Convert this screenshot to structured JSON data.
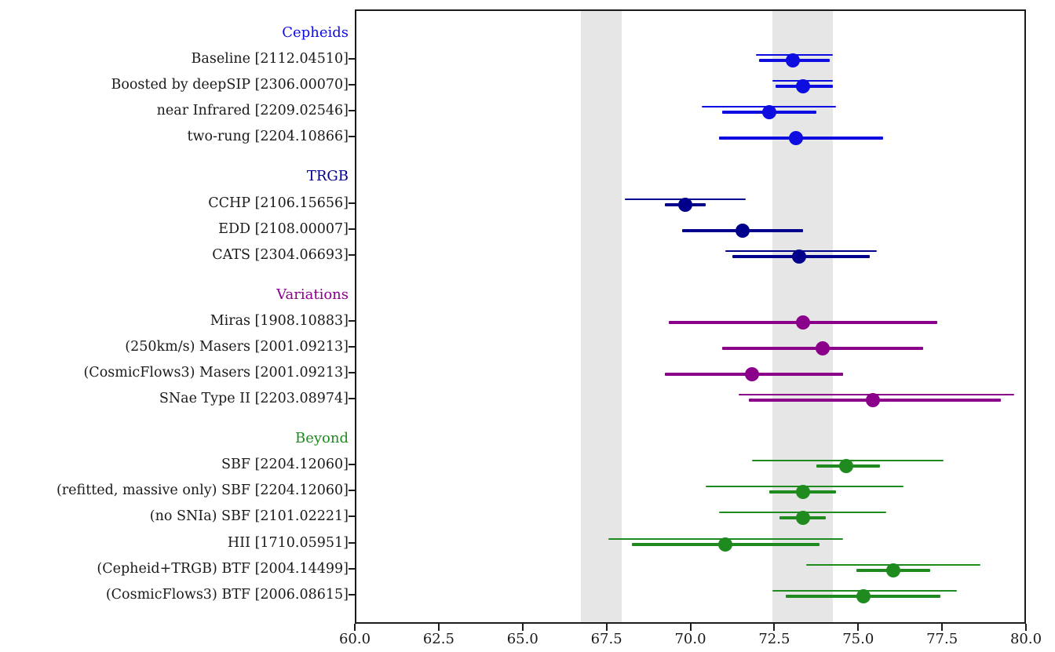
{
  "figure": {
    "background": "#ffffff",
    "frame_color": "#1c1c1c",
    "band_color": "#e6e6e6"
  },
  "chart_data": {
    "type": "scatter",
    "subtype": "forest-errorbar",
    "title": "",
    "xlabel": "",
    "ylabel": "",
    "xlim": [
      60.0,
      80.0
    ],
    "grid": false,
    "legend_position": "none",
    "x_ticks": [
      60.0,
      62.5,
      65.0,
      67.5,
      70.0,
      72.5,
      75.0,
      77.5,
      80.0
    ],
    "x_tick_labels": [
      "60.0",
      "62.5",
      "65.0",
      "67.5",
      "70.0",
      "72.5",
      "75.0",
      "77.5",
      "80.0"
    ],
    "bands": [
      {
        "name": "early-universe-band",
        "range": [
          66.7,
          67.9
        ]
      },
      {
        "name": "late-universe-band",
        "range": [
          72.4,
          74.2
        ]
      }
    ],
    "groups": [
      {
        "label": "Cepheids",
        "color": "#0d0de0",
        "entries": [
          {
            "label": "Baseline [2112.04510]",
            "value": 73.0,
            "outer": [
              71.9,
              74.2
            ],
            "inner": [
              72.0,
              74.1
            ]
          },
          {
            "label": "Boosted by deepSIP [2306.00070]",
            "value": 73.3,
            "outer": [
              72.4,
              74.2
            ],
            "inner": [
              72.5,
              74.2
            ]
          },
          {
            "label": "near Infrared [2209.02546]",
            "value": 72.3,
            "outer": [
              70.3,
              74.3
            ],
            "inner": [
              70.9,
              73.7
            ]
          },
          {
            "label": "two-rung [2204.10866]",
            "value": 73.1,
            "outer": null,
            "inner": [
              70.8,
              75.7
            ]
          }
        ]
      },
      {
        "label": "TRGB",
        "color": "#00008b",
        "entries": [
          {
            "label": "CCHP [2106.15656]",
            "value": 69.8,
            "outer": [
              68.0,
              71.6
            ],
            "inner": [
              69.2,
              70.4
            ]
          },
          {
            "label": "EDD [2108.00007]",
            "value": 71.5,
            "outer": null,
            "inner": [
              69.7,
              73.3
            ]
          },
          {
            "label": "CATS [2304.06693]",
            "value": 73.2,
            "outer": [
              71.0,
              75.5
            ],
            "inner": [
              71.2,
              75.3
            ]
          }
        ]
      },
      {
        "label": "Variations",
        "color": "#8b008b",
        "entries": [
          {
            "label": "Miras [1908.10883]",
            "value": 73.3,
            "outer": null,
            "inner": [
              69.3,
              77.3
            ]
          },
          {
            "label": "(250km/s) Masers [2001.09213]",
            "value": 73.9,
            "outer": null,
            "inner": [
              70.9,
              76.9
            ]
          },
          {
            "label": "(CosmicFlows3) Masers [2001.09213]",
            "value": 71.8,
            "outer": null,
            "inner": [
              69.2,
              74.5
            ]
          },
          {
            "label": "SNae Type II [2203.08974]",
            "value": 75.4,
            "outer": [
              71.4,
              79.6
            ],
            "inner": [
              71.7,
              79.2
            ]
          }
        ]
      },
      {
        "label": "Beyond",
        "color": "#1f8b1f",
        "entries": [
          {
            "label": "SBF [2204.12060]",
            "value": 74.6,
            "outer": [
              71.8,
              77.5
            ],
            "inner": [
              73.7,
              75.6
            ]
          },
          {
            "label": "(refitted, massive only) SBF [2204.12060]",
            "value": 73.3,
            "outer": [
              70.4,
              76.3
            ],
            "inner": [
              72.3,
              74.3
            ]
          },
          {
            "label": "(no SNIa) SBF [2101.02221]",
            "value": 73.3,
            "outer": [
              70.8,
              75.8
            ],
            "inner": [
              72.6,
              74.0
            ]
          },
          {
            "label": "HII [1710.05951]",
            "value": 71.0,
            "outer": [
              67.5,
              74.5
            ],
            "inner": [
              68.2,
              73.8
            ]
          },
          {
            "label": "(Cepheid+TRGB) BTF [2004.14499]",
            "value": 76.0,
            "outer": [
              73.4,
              78.6
            ],
            "inner": [
              74.9,
              77.1
            ]
          },
          {
            "label": "(CosmicFlows3) BTF [2006.08615]",
            "value": 75.1,
            "outer": [
              72.4,
              77.9
            ],
            "inner": [
              72.8,
              77.4
            ]
          }
        ]
      }
    ]
  }
}
